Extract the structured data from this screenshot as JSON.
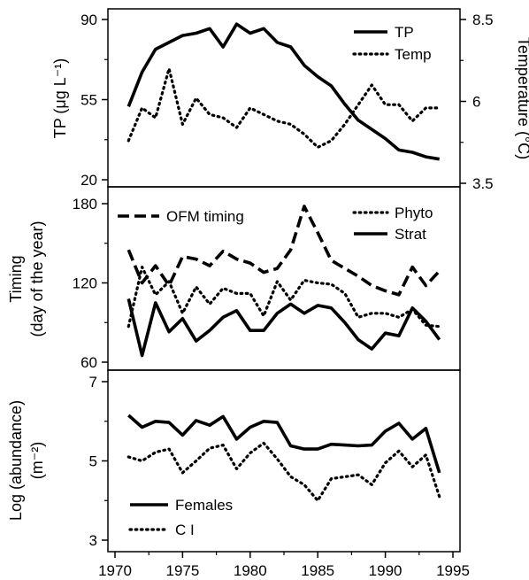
{
  "chart_data": [
    {
      "type": "line",
      "panel": "top",
      "ylabel_left": "TP (μg L⁻¹)",
      "ylabel_right": "Temperature (°C)",
      "ylim": [
        20,
        90
      ],
      "yticks": [
        "90",
        "55",
        "20"
      ],
      "y2lim": [
        3.5,
        8.5
      ],
      "y2ticks": [
        "8.5",
        "6",
        "3.5"
      ],
      "xlim": [
        1970,
        1995
      ],
      "legend_position": "top-right",
      "series": [
        {
          "name": "TP",
          "style": "solid",
          "axis": "left",
          "x": [
            1971,
            1972,
            1973,
            1974,
            1975,
            1976,
            1977,
            1978,
            1979,
            1980,
            1981,
            1982,
            1983,
            1984,
            1985,
            1986,
            1987,
            1988,
            1989,
            1990,
            1991,
            1992,
            1993,
            1994
          ],
          "values": [
            52,
            67,
            77,
            80,
            83,
            84,
            86,
            78,
            88,
            84,
            86,
            80,
            78,
            70,
            65,
            61,
            53,
            46,
            42,
            38,
            33,
            32,
            30,
            29
          ]
        },
        {
          "name": "Temp",
          "style": "dotted",
          "axis": "right",
          "x": [
            1971,
            1972,
            1973,
            1974,
            1975,
            1976,
            1977,
            1978,
            1979,
            1980,
            1981,
            1982,
            1983,
            1984,
            1985,
            1986,
            1987,
            1988,
            1989,
            1990,
            1991,
            1992,
            1993,
            1994
          ],
          "values": [
            4.8,
            5.8,
            5.5,
            7.0,
            5.3,
            6.1,
            5.6,
            5.5,
            5.2,
            5.8,
            5.6,
            5.4,
            5.3,
            5.0,
            4.6,
            4.8,
            5.3,
            5.9,
            6.5,
            5.9,
            5.9,
            5.4,
            5.8,
            5.8
          ]
        }
      ]
    },
    {
      "type": "line",
      "panel": "middle",
      "ylabel": [
        "Timing",
        "(day of the year)"
      ],
      "ylim": [
        60,
        180
      ],
      "yticks": [
        "180",
        "120",
        "60"
      ],
      "xlim": [
        1970,
        1995
      ],
      "series": [
        {
          "name": "OFM timing",
          "style": "dashed",
          "x": [
            1971,
            1972,
            1973,
            1974,
            1975,
            1976,
            1977,
            1978,
            1979,
            1980,
            1981,
            1982,
            1983,
            1984,
            1985,
            1986,
            1987,
            1988,
            1989,
            1990,
            1991,
            1992,
            1993,
            1994
          ],
          "values": [
            145,
            120,
            133,
            118,
            140,
            138,
            133,
            144,
            138,
            135,
            128,
            131,
            145,
            178,
            158,
            137,
            131,
            125,
            118,
            114,
            111,
            132,
            118,
            129
          ]
        },
        {
          "name": "Phyto",
          "style": "dotted",
          "x": [
            1971,
            1972,
            1973,
            1974,
            1975,
            1976,
            1977,
            1978,
            1979,
            1980,
            1981,
            1982,
            1983,
            1984,
            1985,
            1986,
            1987,
            1988,
            1989,
            1990,
            1991,
            1992,
            1993,
            1994
          ],
          "values": [
            87,
            132,
            111,
            121,
            97,
            117,
            104,
            116,
            112,
            112,
            95,
            121,
            107,
            122,
            120,
            119,
            112,
            94,
            97,
            97,
            94,
            100,
            88,
            87
          ]
        },
        {
          "name": "Strat",
          "style": "solid",
          "x": [
            1971,
            1972,
            1973,
            1974,
            1975,
            1976,
            1977,
            1978,
            1979,
            1980,
            1981,
            1982,
            1983,
            1984,
            1985,
            1986,
            1987,
            1988,
            1989,
            1990,
            1991,
            1992,
            1993,
            1994
          ],
          "values": [
            108,
            65,
            105,
            83,
            93,
            76,
            84,
            94,
            99,
            84,
            84,
            97,
            104,
            97,
            103,
            101,
            90,
            77,
            70,
            82,
            80,
            101,
            91,
            77
          ]
        }
      ],
      "legend_position": "top"
    },
    {
      "type": "line",
      "panel": "bottom",
      "ylabel": [
        "Log (abundance)",
        "(m⁻²)"
      ],
      "ylim": [
        3,
        7
      ],
      "yticks": [
        "7",
        "5",
        "3"
      ],
      "xlim": [
        1970,
        1995
      ],
      "xticks": [
        "1970",
        "1975",
        "1980",
        "1985",
        "1990",
        "1995"
      ],
      "series": [
        {
          "name": "Females",
          "style": "solid",
          "x": [
            1971,
            1972,
            1973,
            1974,
            1975,
            1976,
            1977,
            1978,
            1979,
            1980,
            1981,
            1982,
            1983,
            1984,
            1985,
            1986,
            1987,
            1988,
            1989,
            1990,
            1991,
            1992,
            1993,
            1994
          ],
          "values": [
            6.15,
            5.85,
            6.0,
            5.97,
            5.65,
            6.02,
            5.9,
            6.12,
            5.55,
            5.85,
            6.0,
            5.97,
            5.38,
            5.3,
            5.3,
            5.42,
            5.4,
            5.38,
            5.4,
            5.75,
            5.95,
            5.55,
            5.82,
            4.7
          ]
        },
        {
          "name": "C I",
          "style": "dotted",
          "x": [
            1971,
            1972,
            1973,
            1974,
            1975,
            1976,
            1977,
            1978,
            1979,
            1980,
            1981,
            1982,
            1983,
            1984,
            1985,
            1986,
            1987,
            1988,
            1989,
            1990,
            1991,
            1992,
            1993,
            1994
          ],
          "values": [
            5.1,
            5.0,
            5.22,
            5.3,
            4.7,
            5.0,
            5.32,
            5.4,
            4.8,
            5.2,
            5.45,
            5.05,
            4.6,
            4.4,
            4.0,
            4.55,
            4.6,
            4.65,
            4.4,
            4.95,
            5.25,
            4.85,
            5.15,
            4.1
          ]
        }
      ],
      "legend_position": "bottom-left"
    }
  ]
}
